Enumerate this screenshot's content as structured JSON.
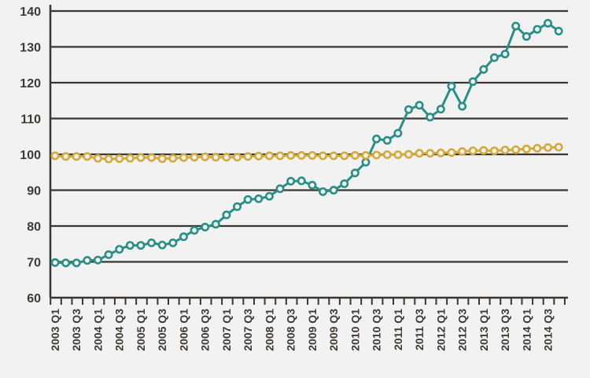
{
  "chart_data": {
    "type": "line",
    "title": "",
    "xlabel": "",
    "ylabel": "",
    "ylim": [
      60,
      140
    ],
    "yticks": [
      60,
      70,
      80,
      90,
      100,
      110,
      120,
      130,
      140
    ],
    "grid": "horizontal",
    "legend": "none",
    "categories": [
      "2003 Q1",
      "2003 Q2",
      "2003 Q3",
      "2003 Q4",
      "2004 Q1",
      "2004 Q2",
      "2004 Q3",
      "2004 Q4",
      "2005 Q1",
      "2005 Q2",
      "2005 Q3",
      "2005 Q4",
      "2006 Q1",
      "2006 Q2",
      "2006 Q3",
      "2006 Q4",
      "2007 Q1",
      "2007 Q2",
      "2007 Q3",
      "2007 Q4",
      "2008 Q1",
      "2008 Q2",
      "2008 Q3",
      "2008 Q4",
      "2009 Q1",
      "2009 Q2",
      "2009 Q3",
      "2009 Q4",
      "2010 Q1",
      "2010 Q2",
      "2010 Q3",
      "2010 Q4",
      "2011 Q1",
      "2011 Q2",
      "2011 Q3",
      "2011 Q4",
      "2012 Q1",
      "2012 Q2",
      "2012 Q3",
      "2012 Q4",
      "2013 Q1",
      "2013 Q2",
      "2013 Q3",
      "2013 Q4",
      "2014 Q1",
      "2014 Q2",
      "2014 Q3",
      "2014 Q4"
    ],
    "tick_labels": [
      "2003 Q1",
      "2003 Q3",
      "2004 Q1",
      "2004 Q3",
      "2005 Q1",
      "2005 Q3",
      "2006 Q1",
      "2006 Q3",
      "2007 Q1",
      "2007 Q3",
      "2008 Q1",
      "2008 Q3",
      "2009 Q1",
      "2009 Q3",
      "2010 Q1",
      "2010 Q3",
      "2011 Q1",
      "2011 Q3",
      "2012 Q1",
      "2012 Q3",
      "2013 Q1",
      "2013 Q3",
      "2014 Q1",
      "2014 Q3"
    ],
    "series": [
      {
        "color": "#2a8f86",
        "values": [
          69.8,
          69.7,
          69.7,
          70.4,
          70.5,
          72.0,
          73.5,
          74.6,
          74.6,
          75.3,
          74.7,
          75.3,
          77.0,
          78.8,
          79.7,
          80.5,
          83.1,
          85.4,
          87.4,
          87.6,
          88.3,
          90.4,
          92.5,
          92.6,
          91.4,
          89.6,
          90.0,
          91.8,
          94.8,
          97.8,
          104.3,
          103.9,
          105.9,
          112.5,
          113.7,
          110.4,
          112.6,
          119.0,
          113.4,
          120.3,
          123.7,
          127.0,
          128.0,
          135.8,
          132.9,
          134.9,
          136.6,
          134.4
        ]
      },
      {
        "color": "#d3aa3c",
        "values": [
          99.6,
          99.4,
          99.4,
          99.4,
          98.9,
          98.7,
          98.8,
          98.9,
          99.1,
          99.1,
          98.8,
          98.9,
          99.1,
          99.2,
          99.3,
          99.2,
          99.2,
          99.2,
          99.4,
          99.5,
          99.6,
          99.6,
          99.7,
          99.7,
          99.7,
          99.6,
          99.6,
          99.6,
          99.7,
          99.7,
          99.8,
          99.9,
          99.9,
          100.0,
          100.3,
          100.3,
          100.4,
          100.5,
          100.8,
          101.0,
          101.1,
          101.0,
          101.2,
          101.3,
          101.5,
          101.7,
          101.9,
          102.0
        ]
      }
    ],
    "colors": {
      "background": "#f2f2f2",
      "gridline": "#3b3632",
      "axis": "#3b3632",
      "text": "#3d3a36"
    }
  }
}
